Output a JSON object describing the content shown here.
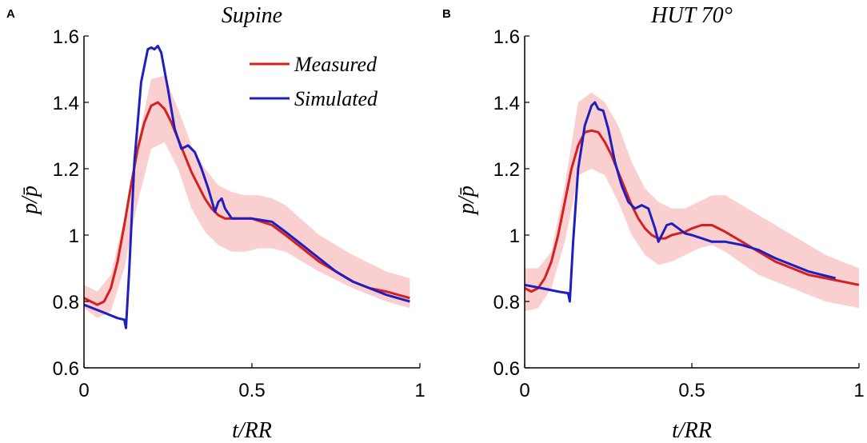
{
  "chart_data": [
    {
      "type": "line",
      "panel_label": "A",
      "title": "Supine",
      "xlabel": "t/RR",
      "ylabel": "p/p̄",
      "xlim": [
        0,
        1
      ],
      "ylim": [
        0.6,
        1.6
      ],
      "xticks": [
        0,
        0.5,
        1
      ],
      "xtick_labels": [
        "0",
        "0.5",
        "1"
      ],
      "yticks": [
        0.6,
        0.8,
        1.0,
        1.2,
        1.4,
        1.6
      ],
      "ytick_labels": [
        "0.6",
        "0.8",
        "1",
        "1.2",
        "1.4",
        "1.6"
      ],
      "legend": {
        "position": "top-right",
        "entries": [
          "Measured",
          "Simulated"
        ]
      },
      "colors": {
        "measured": "#d42020",
        "simulated": "#1f1fc0",
        "band": "#f9cfcf"
      },
      "band": {
        "x": [
          0,
          0.04,
          0.08,
          0.12,
          0.16,
          0.2,
          0.24,
          0.28,
          0.32,
          0.36,
          0.4,
          0.44,
          0.48,
          0.52,
          0.56,
          0.6,
          0.7,
          0.8,
          0.9,
          0.97
        ],
        "upper": [
          0.85,
          0.83,
          0.88,
          1.05,
          1.28,
          1.47,
          1.48,
          1.38,
          1.27,
          1.2,
          1.15,
          1.13,
          1.12,
          1.12,
          1.11,
          1.09,
          1.0,
          0.94,
          0.89,
          0.87
        ],
        "lower": [
          0.78,
          0.75,
          0.77,
          0.9,
          1.1,
          1.26,
          1.28,
          1.2,
          1.08,
          1.01,
          0.97,
          0.95,
          0.95,
          0.96,
          0.96,
          0.95,
          0.89,
          0.84,
          0.8,
          0.78
        ]
      },
      "series": [
        {
          "name": "Measured",
          "x": [
            0,
            0.02,
            0.04,
            0.06,
            0.08,
            0.1,
            0.12,
            0.14,
            0.16,
            0.18,
            0.2,
            0.22,
            0.24,
            0.26,
            0.28,
            0.3,
            0.32,
            0.34,
            0.36,
            0.38,
            0.4,
            0.42,
            0.45,
            0.48,
            0.5,
            0.53,
            0.56,
            0.6,
            0.65,
            0.7,
            0.75,
            0.8,
            0.85,
            0.9,
            0.97
          ],
          "y": [
            0.81,
            0.8,
            0.79,
            0.8,
            0.84,
            0.92,
            1.03,
            1.15,
            1.26,
            1.34,
            1.39,
            1.4,
            1.38,
            1.34,
            1.29,
            1.24,
            1.19,
            1.15,
            1.11,
            1.08,
            1.06,
            1.05,
            1.05,
            1.05,
            1.05,
            1.04,
            1.03,
            1.0,
            0.96,
            0.92,
            0.89,
            0.86,
            0.84,
            0.83,
            0.81
          ]
        },
        {
          "name": "Simulated",
          "x": [
            0,
            0.05,
            0.1,
            0.12,
            0.125,
            0.135,
            0.15,
            0.17,
            0.19,
            0.2,
            0.21,
            0.22,
            0.23,
            0.25,
            0.27,
            0.29,
            0.31,
            0.33,
            0.35,
            0.37,
            0.39,
            0.4,
            0.41,
            0.42,
            0.44,
            0.47,
            0.5,
            0.53,
            0.56,
            0.6,
            0.65,
            0.7,
            0.75,
            0.8,
            0.85,
            0.9,
            0.97
          ],
          "y": [
            0.79,
            0.77,
            0.75,
            0.745,
            0.72,
            0.9,
            1.22,
            1.46,
            1.56,
            1.565,
            1.56,
            1.57,
            1.55,
            1.44,
            1.32,
            1.26,
            1.27,
            1.25,
            1.2,
            1.14,
            1.07,
            1.1,
            1.11,
            1.08,
            1.05,
            1.05,
            1.05,
            1.045,
            1.04,
            1.01,
            0.97,
            0.93,
            0.89,
            0.86,
            0.84,
            0.82,
            0.8
          ]
        }
      ]
    },
    {
      "type": "line",
      "panel_label": "B",
      "title": "HUT 70°",
      "xlabel": "t/RR",
      "ylabel": "p/p̄",
      "xlim": [
        0,
        1
      ],
      "ylim": [
        0.6,
        1.6
      ],
      "xticks": [
        0,
        0.5,
        1
      ],
      "xtick_labels": [
        "0",
        "0.5",
        "1"
      ],
      "yticks": [
        0.6,
        0.8,
        1.0,
        1.2,
        1.4,
        1.6
      ],
      "ytick_labels": [
        "0.6",
        "0.8",
        "1",
        "1.2",
        "1.4",
        "1.6"
      ],
      "colors": {
        "measured": "#d42020",
        "simulated": "#1f1fc0",
        "band": "#f9cfcf"
      },
      "band": {
        "x": [
          0,
          0.04,
          0.08,
          0.12,
          0.16,
          0.2,
          0.24,
          0.28,
          0.32,
          0.36,
          0.4,
          0.44,
          0.48,
          0.52,
          0.56,
          0.6,
          0.7,
          0.8,
          0.9,
          1.0
        ],
        "upper": [
          0.9,
          0.9,
          0.95,
          1.15,
          1.4,
          1.43,
          1.4,
          1.33,
          1.22,
          1.14,
          1.1,
          1.08,
          1.08,
          1.1,
          1.12,
          1.12,
          1.06,
          1.0,
          0.94,
          0.9
        ],
        "lower": [
          0.77,
          0.78,
          0.84,
          0.98,
          1.18,
          1.2,
          1.18,
          1.1,
          1.0,
          0.94,
          0.91,
          0.92,
          0.94,
          0.96,
          0.97,
          0.95,
          0.88,
          0.84,
          0.8,
          0.78
        ]
      },
      "series": [
        {
          "name": "Measured",
          "x": [
            0,
            0.02,
            0.04,
            0.06,
            0.08,
            0.1,
            0.12,
            0.14,
            0.16,
            0.18,
            0.2,
            0.22,
            0.24,
            0.26,
            0.28,
            0.3,
            0.32,
            0.34,
            0.36,
            0.38,
            0.4,
            0.42,
            0.44,
            0.46,
            0.48,
            0.5,
            0.53,
            0.56,
            0.6,
            0.65,
            0.7,
            0.75,
            0.8,
            0.85,
            0.9,
            1.0
          ],
          "y": [
            0.84,
            0.83,
            0.84,
            0.87,
            0.92,
            1.0,
            1.1,
            1.2,
            1.27,
            1.31,
            1.315,
            1.31,
            1.28,
            1.24,
            1.19,
            1.14,
            1.09,
            1.05,
            1.02,
            1.0,
            0.99,
            0.99,
            1.0,
            1.005,
            1.01,
            1.02,
            1.03,
            1.03,
            1.01,
            0.98,
            0.95,
            0.92,
            0.9,
            0.88,
            0.87,
            0.85
          ]
        },
        {
          "name": "Simulated",
          "x": [
            0,
            0.05,
            0.1,
            0.13,
            0.135,
            0.145,
            0.16,
            0.18,
            0.2,
            0.21,
            0.22,
            0.235,
            0.25,
            0.27,
            0.29,
            0.31,
            0.33,
            0.35,
            0.37,
            0.39,
            0.4,
            0.405,
            0.415,
            0.425,
            0.44,
            0.46,
            0.48,
            0.5,
            0.53,
            0.56,
            0.6,
            0.65,
            0.7,
            0.75,
            0.8,
            0.85,
            0.93
          ],
          "y": [
            0.85,
            0.84,
            0.83,
            0.825,
            0.8,
            0.98,
            1.2,
            1.33,
            1.39,
            1.4,
            1.38,
            1.375,
            1.32,
            1.22,
            1.15,
            1.1,
            1.08,
            1.09,
            1.08,
            1.02,
            0.98,
            0.99,
            1.01,
            1.03,
            1.035,
            1.02,
            1.005,
            1.0,
            0.99,
            0.98,
            0.98,
            0.97,
            0.955,
            0.93,
            0.91,
            0.89,
            0.87
          ]
        }
      ]
    }
  ]
}
